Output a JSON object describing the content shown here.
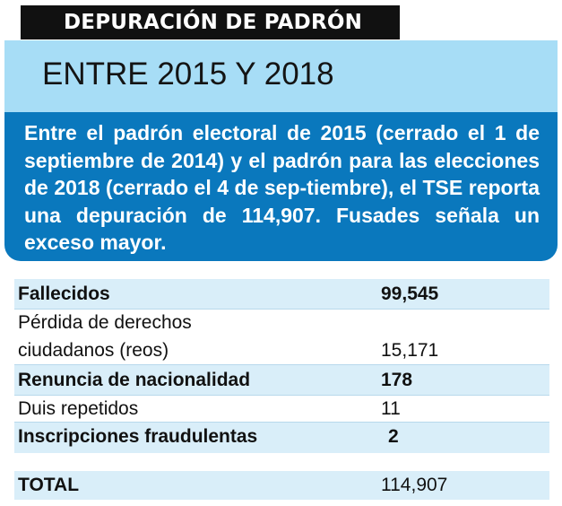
{
  "header": {
    "tag": "DEPURACIÓN DE PADRÓN",
    "title": "ENTRE 2015 Y 2018",
    "description": "Entre el padrón electoral de 2015 (cerrado el 1 de septiembre de 2014) y el padrón para las elecciones de 2018 (cerrado el 4 de sep-tiembre), el TSE reporta una depuración de 114,907. Fusades señala un exceso mayor."
  },
  "colors": {
    "title_band": "#a7ddf6",
    "description_box": "#0a78bd",
    "row_shade": "#d9eef9",
    "tag_bg": "#111111"
  },
  "table": {
    "rows": [
      {
        "label": "Fallecidos",
        "value": "99,545",
        "bold": true
      },
      {
        "label_line1": "Pérdida de derechos",
        "label_line2": "ciudadanos (reos)",
        "value": "15,171",
        "bold": false
      },
      {
        "label": "Renuncia de nacionalidad",
        "value": "178",
        "bold": true
      },
      {
        "label": "Duis repetidos",
        "value": "11",
        "bold": false
      },
      {
        "label": "Inscripciones fraudulentas",
        "value": "2",
        "bold": true
      }
    ],
    "total": {
      "label": "TOTAL",
      "value": "114,907"
    }
  }
}
